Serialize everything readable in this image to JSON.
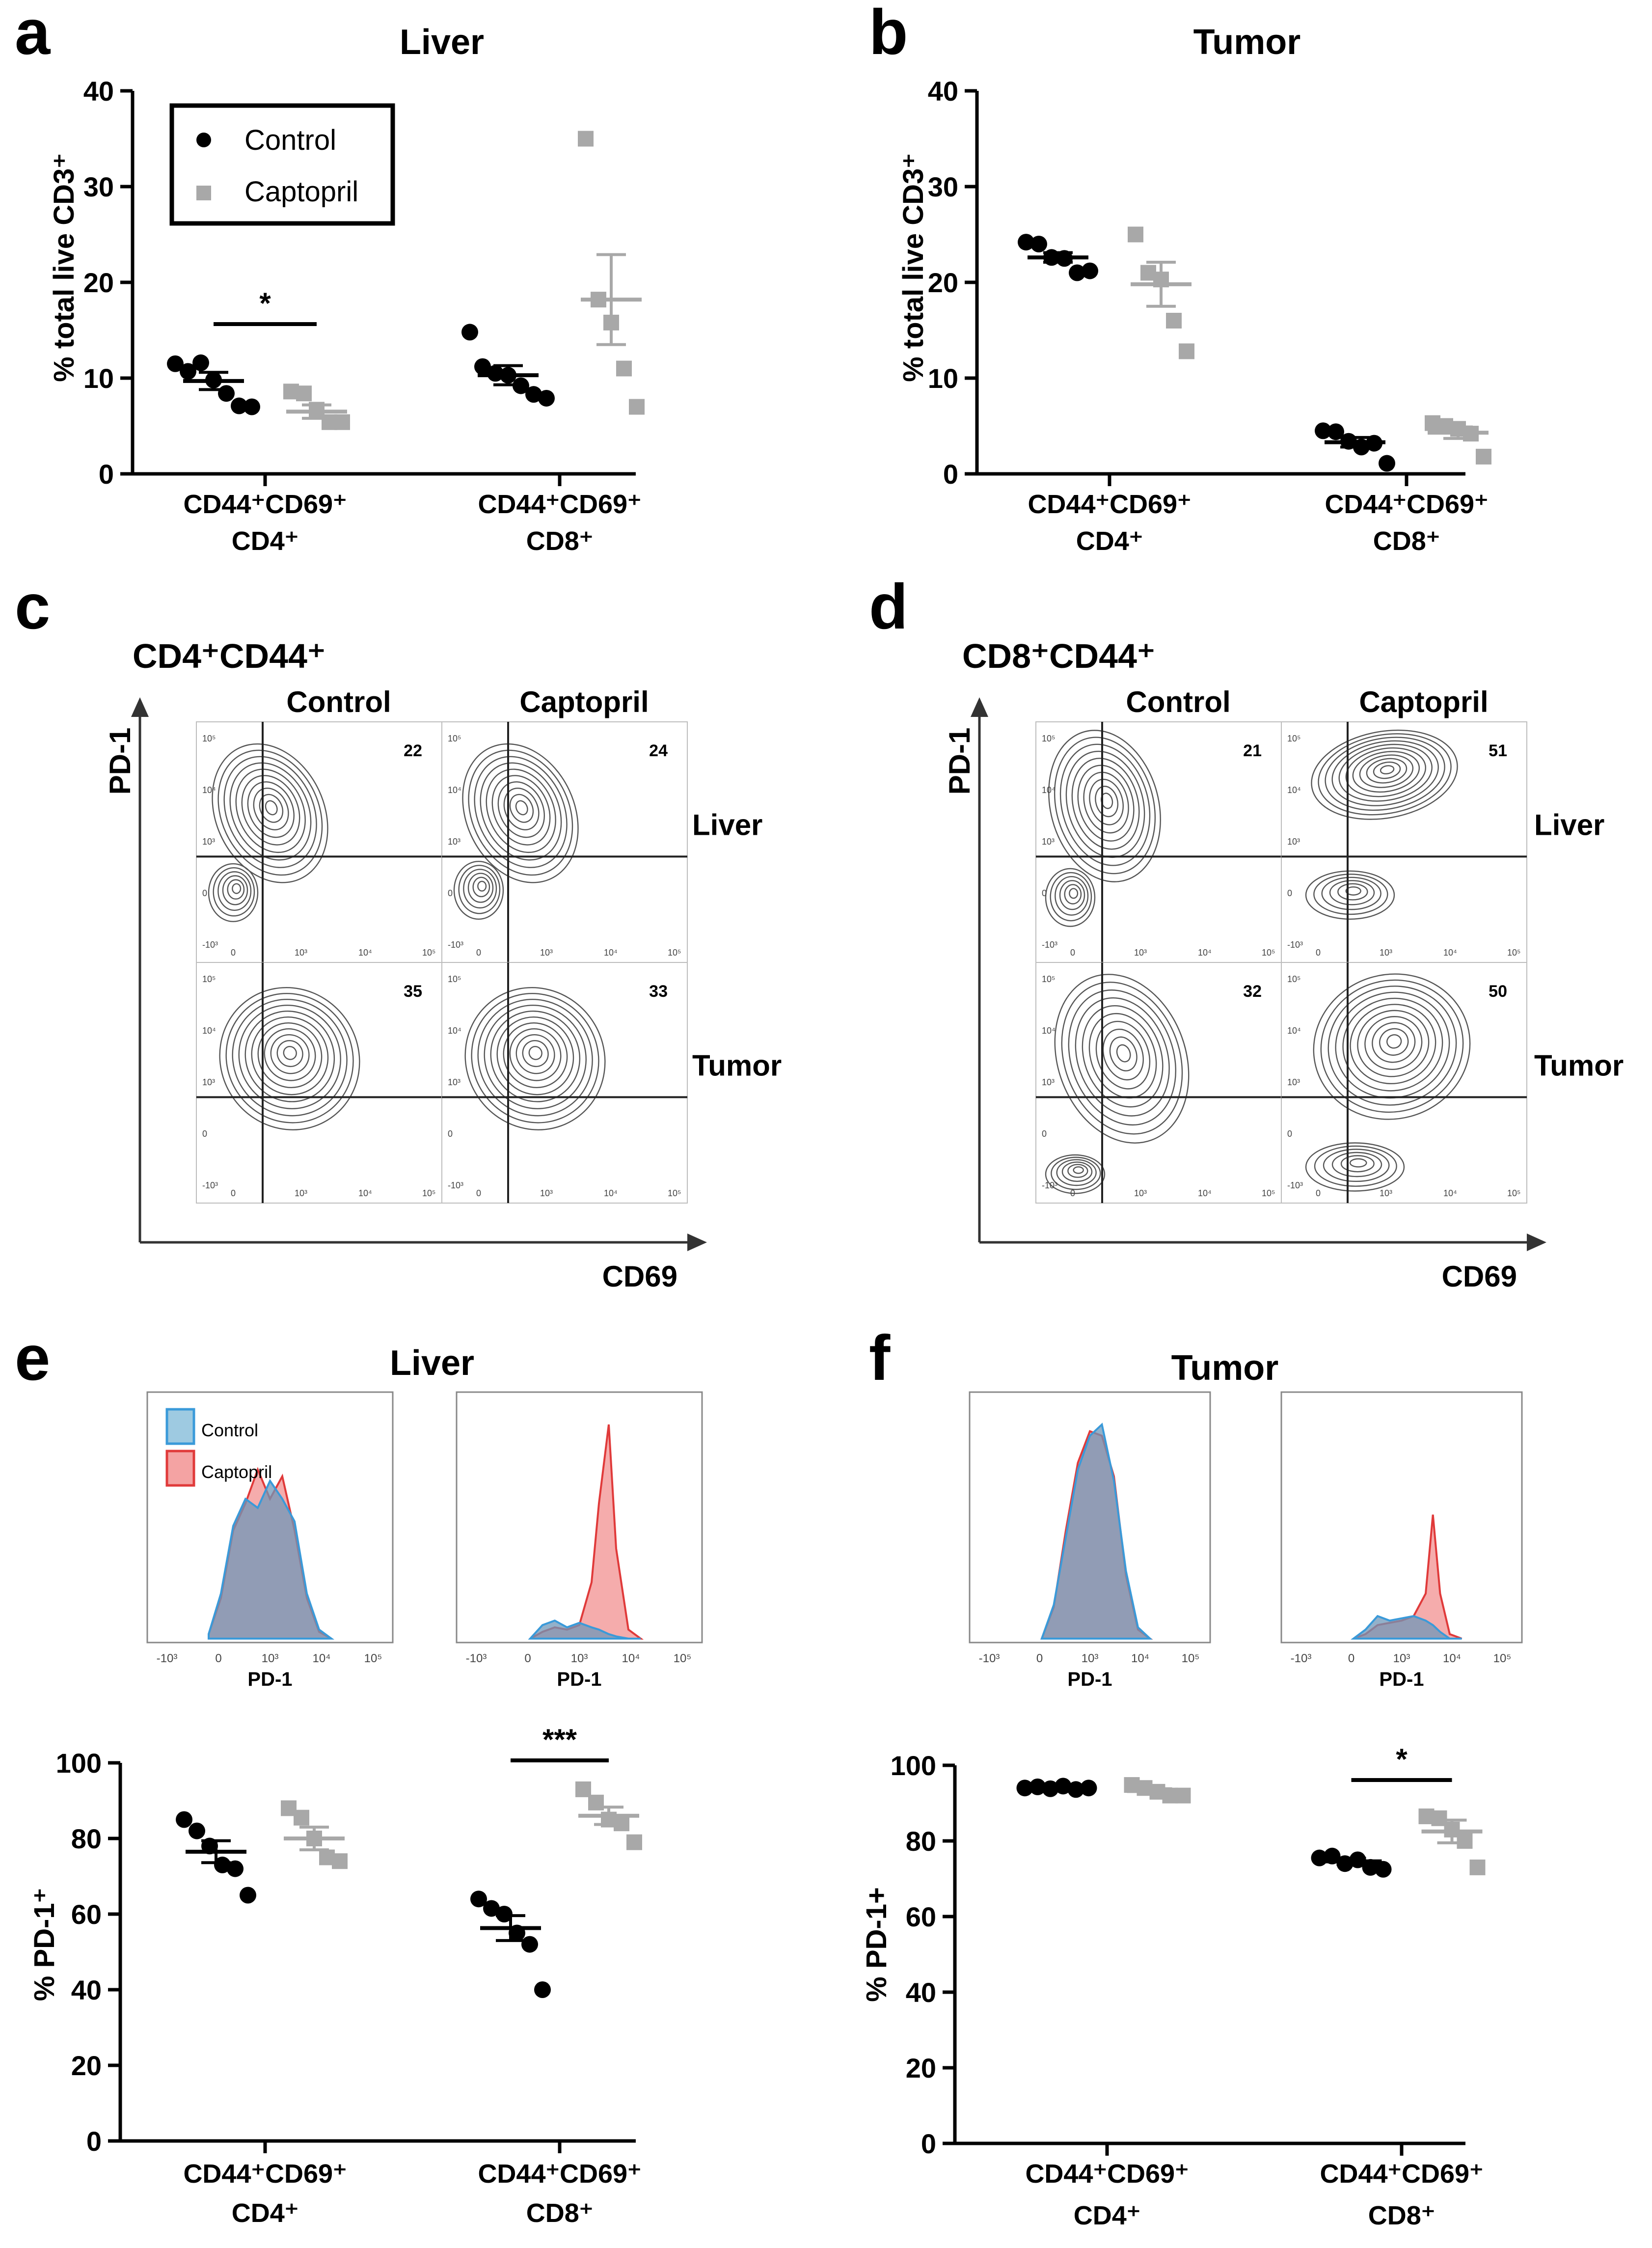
{
  "colors": {
    "control": "#000000",
    "captopril": "#a8a8a8",
    "hist_control_fill": "#9ecae1",
    "hist_control_stroke": "#3a9ad9",
    "hist_captopril_fill": "#f4a3a3",
    "hist_captopril_stroke": "#e03a3a",
    "hist_overlap": "#6f97b8",
    "contour": "#555555"
  },
  "legend": {
    "control": "Control",
    "captopril": "Captopril"
  },
  "chart_data": [
    {
      "id": "a",
      "panel_label": "a",
      "type": "scatter",
      "title": "Liver",
      "ylabel": "% total live CD3⁺",
      "ylim": [
        0,
        40
      ],
      "yticks": [
        0,
        10,
        20,
        30,
        40
      ],
      "categories": [
        {
          "line1": "CD44⁺CD69⁺",
          "line2": "CD4⁺"
        },
        {
          "line1": "CD44⁺CD69⁺",
          "line2": "CD8⁺"
        }
      ],
      "series": [
        {
          "name": "Control",
          "groups": [
            {
              "points": [
                11.5,
                10.7,
                11.6,
                9.8,
                8.4,
                7.1,
                7.0
              ],
              "mean": 9.7,
              "sem": 0.9
            },
            {
              "points": [
                14.8,
                11.2,
                10.5,
                10.3,
                9.2,
                8.3,
                7.9
              ],
              "mean": 10.3,
              "sem": 1.0
            }
          ]
        },
        {
          "name": "Captopril",
          "groups": [
            {
              "points": [
                8.6,
                8.4,
                6.7,
                5.4,
                5.4
              ],
              "mean": 6.5,
              "sem": 0.7
            },
            {
              "points": [
                35.0,
                18.2,
                15.8,
                11.0,
                7.0
              ],
              "mean": 18.2,
              "sem": 4.7
            }
          ]
        }
      ],
      "significance": [
        {
          "group": 0,
          "label": "*"
        }
      ]
    },
    {
      "id": "b",
      "panel_label": "b",
      "type": "scatter",
      "title": "Tumor",
      "ylabel": "% total live CD3⁺",
      "ylim": [
        0,
        40
      ],
      "yticks": [
        0,
        10,
        20,
        30,
        40
      ],
      "categories": [
        {
          "line1": "CD44⁺CD69⁺",
          "line2": "CD4⁺"
        },
        {
          "line1": "CD44⁺CD69⁺",
          "line2": "CD8⁺"
        }
      ],
      "series": [
        {
          "name": "Control",
          "groups": [
            {
              "points": [
                24.2,
                24.0,
                22.6,
                22.5,
                21.0,
                21.2
              ],
              "mean": 22.6,
              "sem": 0.5
            },
            {
              "points": [
                4.5,
                4.4,
                3.4,
                2.8,
                3.2,
                1.1
              ],
              "mean": 3.3,
              "sem": 0.5
            }
          ]
        },
        {
          "name": "Captopril",
          "groups": [
            {
              "points": [
                25.0,
                21.0,
                20.3,
                16.0,
                12.8
              ],
              "mean": 19.8,
              "sem": 2.3
            },
            {
              "points": [
                5.3,
                5.0,
                4.7,
                4.2,
                1.8
              ],
              "mean": 4.3,
              "sem": 0.6
            }
          ]
        }
      ],
      "significance": []
    },
    {
      "id": "e",
      "panel_label": "",
      "type": "scatter",
      "title": "",
      "ylabel": "% PD-1⁺",
      "ylim": [
        0,
        100
      ],
      "yticks": [
        0,
        20,
        40,
        60,
        80,
        100
      ],
      "categories": [
        {
          "line1": "CD44⁺CD69⁺",
          "line2": "CD4⁺"
        },
        {
          "line1": "CD44⁺CD69⁺",
          "line2": "CD8⁺"
        }
      ],
      "series": [
        {
          "name": "Control",
          "groups": [
            {
              "points": [
                85.0,
                82.0,
                78.0,
                73.0,
                72.0,
                65.0
              ],
              "mean": 76.5,
              "sem": 2.9
            },
            {
              "points": [
                64.0,
                61.5,
                60.0,
                55.0,
                52.0,
                40.0
              ],
              "mean": 56.3,
              "sem": 3.3
            }
          ]
        },
        {
          "name": "Captopril",
          "groups": [
            {
              "points": [
                88.0,
                85.5,
                80.0,
                75.0,
                74.0
              ],
              "mean": 80.0,
              "sem": 3.0
            },
            {
              "points": [
                93.0,
                89.5,
                85.0,
                84.0,
                79.0
              ],
              "mean": 86.0,
              "sem": 2.3
            }
          ]
        }
      ],
      "significance": [
        {
          "group": 1,
          "label": "***"
        }
      ]
    },
    {
      "id": "f",
      "panel_label": "",
      "type": "scatter",
      "title": "",
      "ylabel": "% PD-1+",
      "ylim": [
        0,
        100
      ],
      "yticks": [
        0,
        20,
        40,
        60,
        80,
        100
      ],
      "categories": [
        {
          "line1": "CD44⁺CD69⁺",
          "line2": "CD4⁺"
        },
        {
          "line1": "CD44⁺CD69⁺",
          "line2": "CD8⁺"
        }
      ],
      "series": [
        {
          "name": "Control",
          "groups": [
            {
              "points": [
                94.0,
                94.3,
                93.8,
                94.5,
                93.6,
                94.0
              ],
              "mean": 94.0,
              "sem": 0.3
            },
            {
              "points": [
                75.5,
                76.0,
                74.0,
                75.0,
                73.0,
                72.5
              ],
              "mean": 74.6,
              "sem": 0.8
            }
          ]
        },
        {
          "name": "Captopril",
          "groups": [
            {
              "points": [
                94.8,
                94.0,
                93.0,
                92.0,
                92.0
              ],
              "mean": 93.2,
              "sem": 0.6
            },
            {
              "points": [
                86.5,
                86.0,
                83.0,
                80.0,
                73.0
              ],
              "mean": 82.5,
              "sem": 3.0
            }
          ]
        }
      ],
      "significance": [
        {
          "group": 1,
          "label": "*"
        }
      ]
    },
    {
      "id": "e_hist",
      "type": "area",
      "panel_label": "e",
      "title": "Liver",
      "xlabel": "PD-1",
      "xticks": [
        "-10³",
        "0",
        "10³",
        "10⁴",
        "10⁵"
      ],
      "legend": [
        "Control",
        "Captopril"
      ],
      "histograms": [
        {
          "x": [
            0.25,
            0.3,
            0.35,
            0.4,
            0.45,
            0.5,
            0.55,
            0.6,
            0.65,
            0.7,
            0.75
          ],
          "control": [
            0.02,
            0.2,
            0.5,
            0.62,
            0.58,
            0.7,
            0.62,
            0.52,
            0.2,
            0.04,
            0.0
          ],
          "captopril": [
            0.02,
            0.18,
            0.48,
            0.6,
            0.75,
            0.62,
            0.72,
            0.48,
            0.18,
            0.03,
            0.0
          ]
        },
        {
          "x": [
            0.3,
            0.35,
            0.4,
            0.45,
            0.5,
            0.55,
            0.58,
            0.62,
            0.65,
            0.7,
            0.75
          ],
          "control": [
            0.0,
            0.06,
            0.08,
            0.05,
            0.07,
            0.05,
            0.04,
            0.02,
            0.01,
            0.0,
            0.0
          ],
          "captopril": [
            0.0,
            0.03,
            0.05,
            0.04,
            0.06,
            0.25,
            0.6,
            0.95,
            0.4,
            0.04,
            0.0
          ]
        }
      ]
    },
    {
      "id": "f_hist",
      "type": "area",
      "panel_label": "f",
      "title": "Tumor",
      "xlabel": "PD-1",
      "xticks": [
        "-10³",
        "0",
        "10³",
        "10⁴",
        "10⁵"
      ],
      "histograms": [
        {
          "x": [
            0.3,
            0.35,
            0.4,
            0.45,
            0.5,
            0.55,
            0.6,
            0.65,
            0.7,
            0.75
          ],
          "control": [
            0.0,
            0.15,
            0.45,
            0.75,
            0.9,
            0.95,
            0.7,
            0.3,
            0.05,
            0.0
          ],
          "captopril": [
            0.0,
            0.14,
            0.48,
            0.78,
            0.92,
            0.9,
            0.72,
            0.28,
            0.04,
            0.0
          ]
        },
        {
          "x": [
            0.3,
            0.35,
            0.4,
            0.45,
            0.5,
            0.55,
            0.6,
            0.63,
            0.66,
            0.7,
            0.75
          ],
          "control": [
            0.0,
            0.04,
            0.1,
            0.08,
            0.09,
            0.1,
            0.08,
            0.06,
            0.03,
            0.0,
            0.0
          ],
          "captopril": [
            0.0,
            0.02,
            0.06,
            0.07,
            0.08,
            0.1,
            0.2,
            0.55,
            0.2,
            0.02,
            0.0
          ]
        }
      ]
    },
    {
      "id": "c",
      "type": "contour",
      "panel_label": "c",
      "title": "CD4⁺CD44⁺",
      "col_labels": [
        "Control",
        "Captopril"
      ],
      "row_labels": [
        "Liver",
        "Tumor"
      ],
      "xlabel": "CD69",
      "ylabel": "PD-1",
      "xticks": [
        "0",
        "10³",
        "10⁴",
        "10⁵"
      ],
      "yticks": [
        "10⁵",
        "10⁴",
        "10³",
        "0",
        "-10³"
      ],
      "quadrant_values": [
        [
          "22",
          "24"
        ],
        [
          "35",
          "33"
        ]
      ]
    },
    {
      "id": "d",
      "type": "contour",
      "panel_label": "d",
      "title": "CD8⁺CD44⁺",
      "col_labels": [
        "Control",
        "Captopril"
      ],
      "row_labels": [
        "Liver",
        "Tumor"
      ],
      "xlabel": "CD69",
      "ylabel": "PD-1",
      "xticks": [
        "0",
        "10³",
        "10⁴",
        "10⁵"
      ],
      "yticks": [
        "10⁵",
        "10⁴",
        "10³",
        "0",
        "-10³"
      ],
      "quadrant_values": [
        [
          "21",
          "51"
        ],
        [
          "32",
          "50"
        ]
      ]
    }
  ]
}
